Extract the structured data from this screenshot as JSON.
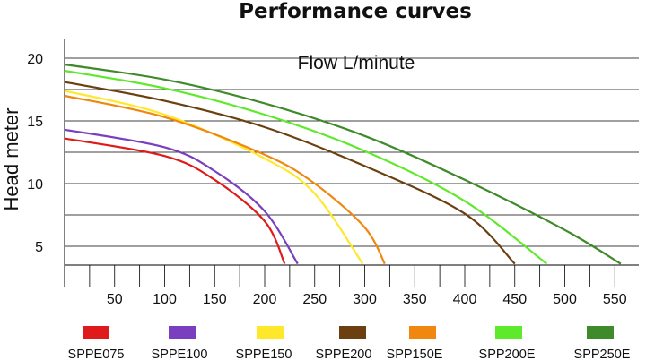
{
  "chart_data": {
    "type": "line",
    "title": "Performance curves",
    "annotation": "Flow L/minute",
    "ylabel": "Head meter",
    "xlabel": "",
    "x_ticks": [
      50,
      100,
      150,
      200,
      250,
      300,
      350,
      400,
      450,
      500,
      550
    ],
    "y_ticks": [
      5,
      10,
      15,
      20
    ],
    "xlim": [
      0,
      560
    ],
    "ylim": [
      3.5,
      21.5
    ],
    "grid": "horizontal",
    "legend_placement": "bottom",
    "series": [
      {
        "name": "SPPE075",
        "color": "#e01a1a",
        "points": [
          [
            0,
            13.6
          ],
          [
            100,
            12.2
          ],
          [
            150,
            10.3
          ],
          [
            200,
            7.0
          ],
          [
            220,
            3.6
          ]
        ]
      },
      {
        "name": "SPPE100",
        "color": "#7a3fbf",
        "points": [
          [
            0,
            14.3
          ],
          [
            100,
            12.9
          ],
          [
            150,
            11.0
          ],
          [
            200,
            7.8
          ],
          [
            233,
            3.6
          ]
        ]
      },
      {
        "name": "SPPE150",
        "color": "#ffe72a",
        "points": [
          [
            0,
            17.4
          ],
          [
            100,
            15.5
          ],
          [
            200,
            12.0
          ],
          [
            250,
            9.2
          ],
          [
            298,
            3.6
          ]
        ]
      },
      {
        "name": "SPPE200",
        "color": "#6b3f10",
        "points": [
          [
            0,
            18.1
          ],
          [
            100,
            16.6
          ],
          [
            200,
            14.5
          ],
          [
            300,
            11.4
          ],
          [
            400,
            7.6
          ],
          [
            450,
            3.6
          ]
        ]
      },
      {
        "name": "SPP150E",
        "color": "#f0870e",
        "points": [
          [
            0,
            17.0
          ],
          [
            100,
            15.3
          ],
          [
            200,
            12.3
          ],
          [
            250,
            10.0
          ],
          [
            300,
            6.5
          ],
          [
            320,
            3.6
          ]
        ]
      },
      {
        "name": "SPP200E",
        "color": "#5eea2a",
        "points": [
          [
            0,
            19.0
          ],
          [
            100,
            17.6
          ],
          [
            200,
            15.5
          ],
          [
            300,
            12.6
          ],
          [
            400,
            8.6
          ],
          [
            482,
            3.6
          ]
        ]
      },
      {
        "name": "SPP250E",
        "color": "#3f8a2a",
        "points": [
          [
            0,
            19.5
          ],
          [
            100,
            18.3
          ],
          [
            200,
            16.4
          ],
          [
            300,
            13.8
          ],
          [
            400,
            10.3
          ],
          [
            500,
            6.3
          ],
          [
            556,
            3.6
          ]
        ]
      }
    ]
  }
}
